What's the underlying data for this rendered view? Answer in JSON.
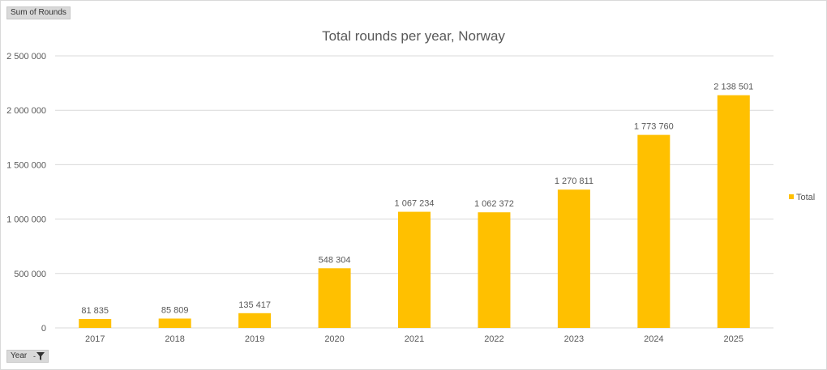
{
  "field_buttons": {
    "values_label": "Sum of Rounds",
    "axis_label": "Year",
    "axis_dropdown_glyph": "-"
  },
  "icons": {
    "filter": "filter-icon"
  },
  "colors": {
    "bar": "#FFC000",
    "text": "#595959",
    "grid": "#D9D9D9"
  },
  "chart_data": {
    "type": "bar",
    "title": "Total rounds per year, Norway",
    "xlabel": "",
    "ylabel": "",
    "categories": [
      "2017",
      "2018",
      "2019",
      "2020",
      "2021",
      "2022",
      "2023",
      "2024",
      "2025"
    ],
    "series": [
      {
        "name": "Total",
        "values": [
          81835,
          85809,
          135417,
          548304,
          1067234,
          1062372,
          1270811,
          1773760,
          2138501
        ],
        "data_labels": [
          "81 835",
          "85 809",
          "135 417",
          "548 304",
          "1 067 234",
          "1 062 372",
          "1 270 811",
          "1 773 760",
          "2 138 501"
        ]
      }
    ],
    "ylim": [
      0,
      2500000
    ],
    "yticks": [
      0,
      500000,
      1000000,
      1500000,
      2000000,
      2500000
    ],
    "ytick_labels": [
      "0",
      "500 000",
      "1 000 000",
      "1 500 000",
      "2 000 000",
      "2 500 000"
    ],
    "grid": true,
    "legend": {
      "position": "right",
      "entries": [
        "Total"
      ]
    }
  }
}
